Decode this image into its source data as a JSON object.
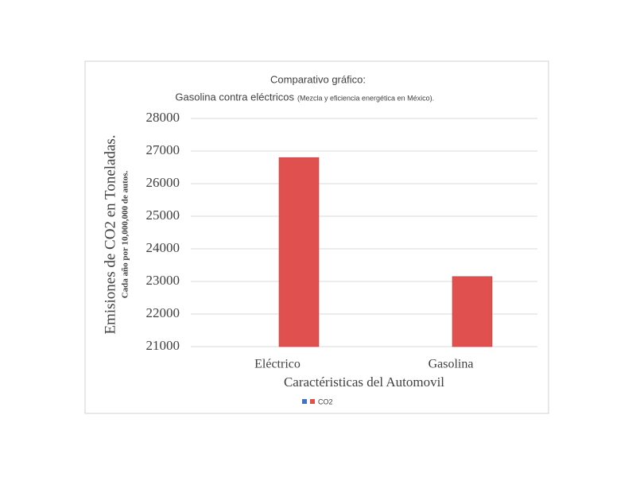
{
  "chart_data": {
    "type": "bar",
    "title": "Comparativo gráfico:",
    "subtitle": "Gasolina contra eléctricos",
    "subtitle_note": "(Mezcla y eficiencia energética en  México).",
    "y_label": "Emisiones de CO2 en Toneladas.",
    "y_sublabel": "Cada año por 10,000,000 de autos.",
    "x_label": "Caractéristicas del Automovil",
    "categories": [
      "Eléctrico",
      "Gasolina"
    ],
    "series": [
      {
        "name": null,
        "color": "#4472c4",
        "values": [
          null,
          null
        ]
      },
      {
        "name": "CO2",
        "color": "#e0504f",
        "values": [
          26800,
          23150
        ]
      }
    ],
    "ylim": [
      21000,
      28000
    ],
    "yticks": [
      21000,
      22000,
      23000,
      24000,
      25000,
      26000,
      27000,
      28000
    ],
    "grid": true,
    "legend": "bottom"
  }
}
